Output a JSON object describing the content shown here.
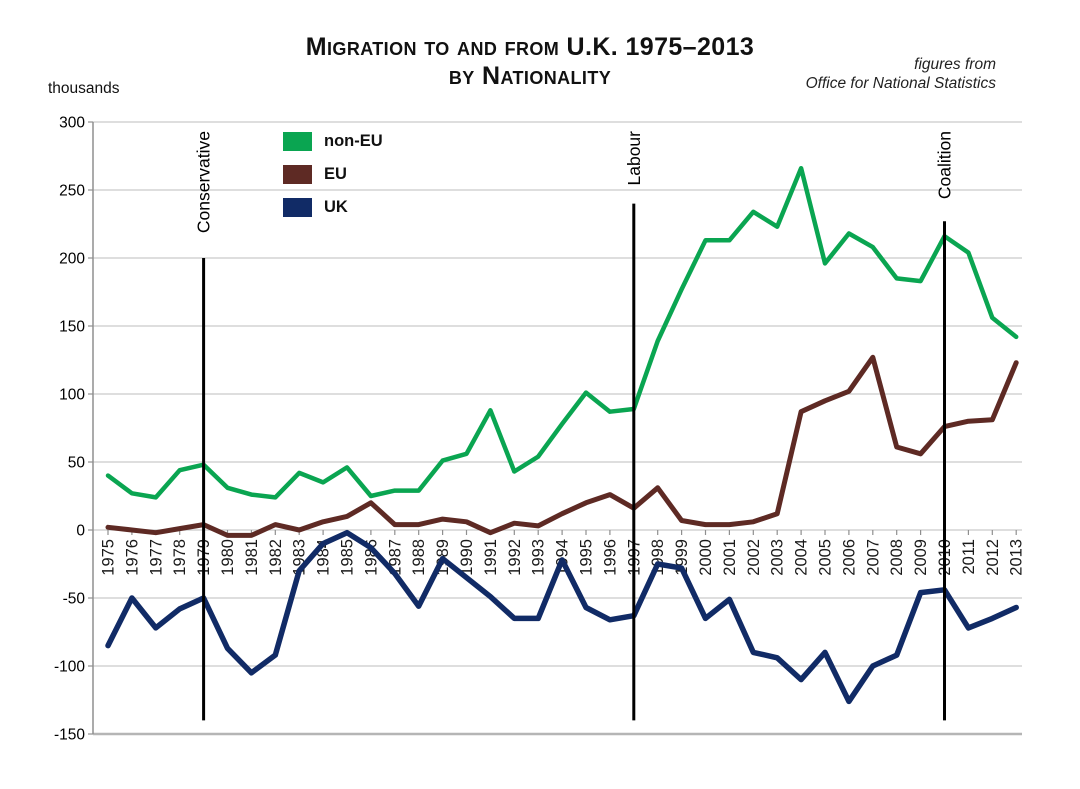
{
  "title": {
    "line1": "Migration to and from U.K. 1975–2013",
    "line2": "by Nationality"
  },
  "source": {
    "line1": "figures from",
    "line2": "Office for National Statistics"
  },
  "y_axis_unit": "thousands",
  "legend": [
    {
      "label": "non-EU",
      "color": "#0aa551"
    },
    {
      "label": "EU",
      "color": "#5e2a24"
    },
    {
      "label": "UK",
      "color": "#112b66"
    }
  ],
  "chart_data": {
    "type": "line",
    "title": "Migration to and from U.K. 1975–2013 by Nationality",
    "ylabel": "thousands",
    "ylim": [
      -150,
      300
    ],
    "ytick_step": 50,
    "grid": true,
    "legend_position": "top-left-inside",
    "x": [
      1975,
      1976,
      1977,
      1978,
      1979,
      1980,
      1981,
      1982,
      1983,
      1984,
      1985,
      1986,
      1987,
      1988,
      1989,
      1990,
      1991,
      1992,
      1993,
      1994,
      1995,
      1996,
      1997,
      1998,
      1999,
      2000,
      2001,
      2002,
      2003,
      2004,
      2005,
      2006,
      2007,
      2008,
      2009,
      2010,
      2011,
      2012,
      2013
    ],
    "series": [
      {
        "name": "non-EU",
        "color": "#0aa551",
        "values": [
          40,
          27,
          24,
          44,
          48,
          31,
          26,
          24,
          42,
          35,
          46,
          25,
          29,
          29,
          51,
          56,
          88,
          43,
          54,
          78,
          101,
          87,
          89,
          139,
          177,
          213,
          213,
          234,
          223,
          266,
          196,
          218,
          208,
          185,
          183,
          216,
          204,
          156,
          142
        ]
      },
      {
        "name": "EU",
        "color": "#5e2a24",
        "values": [
          2,
          0,
          -2,
          1,
          4,
          -4,
          -4,
          4,
          0,
          6,
          10,
          20,
          4,
          4,
          8,
          6,
          -2,
          5,
          3,
          12,
          20,
          26,
          16,
          31,
          7,
          4,
          4,
          6,
          12,
          87,
          95,
          102,
          127,
          61,
          56,
          76,
          80,
          81,
          123
        ]
      },
      {
        "name": "UK",
        "color": "#112b66",
        "values": [
          -85,
          -50,
          -72,
          -58,
          -50,
          -87,
          -105,
          -92,
          -30,
          -10,
          -2,
          -13,
          -32,
          -56,
          -21,
          -35,
          -49,
          -65,
          -65,
          -22,
          -57,
          -66,
          -63,
          -25,
          -28,
          -65,
          -51,
          -90,
          -94,
          -110,
          -90,
          -126,
          -100,
          -92,
          -46,
          -44,
          -72,
          -65,
          -57
        ]
      }
    ],
    "annotations": [
      {
        "label": "Conservative",
        "year": 1979,
        "line_top": 200,
        "line_bottom": -140
      },
      {
        "label": "Labour",
        "year": 1997,
        "line_top": 240,
        "line_bottom": -140
      },
      {
        "label": "Coalition",
        "year": 2010,
        "line_top": 227,
        "line_bottom": -140
      }
    ]
  }
}
